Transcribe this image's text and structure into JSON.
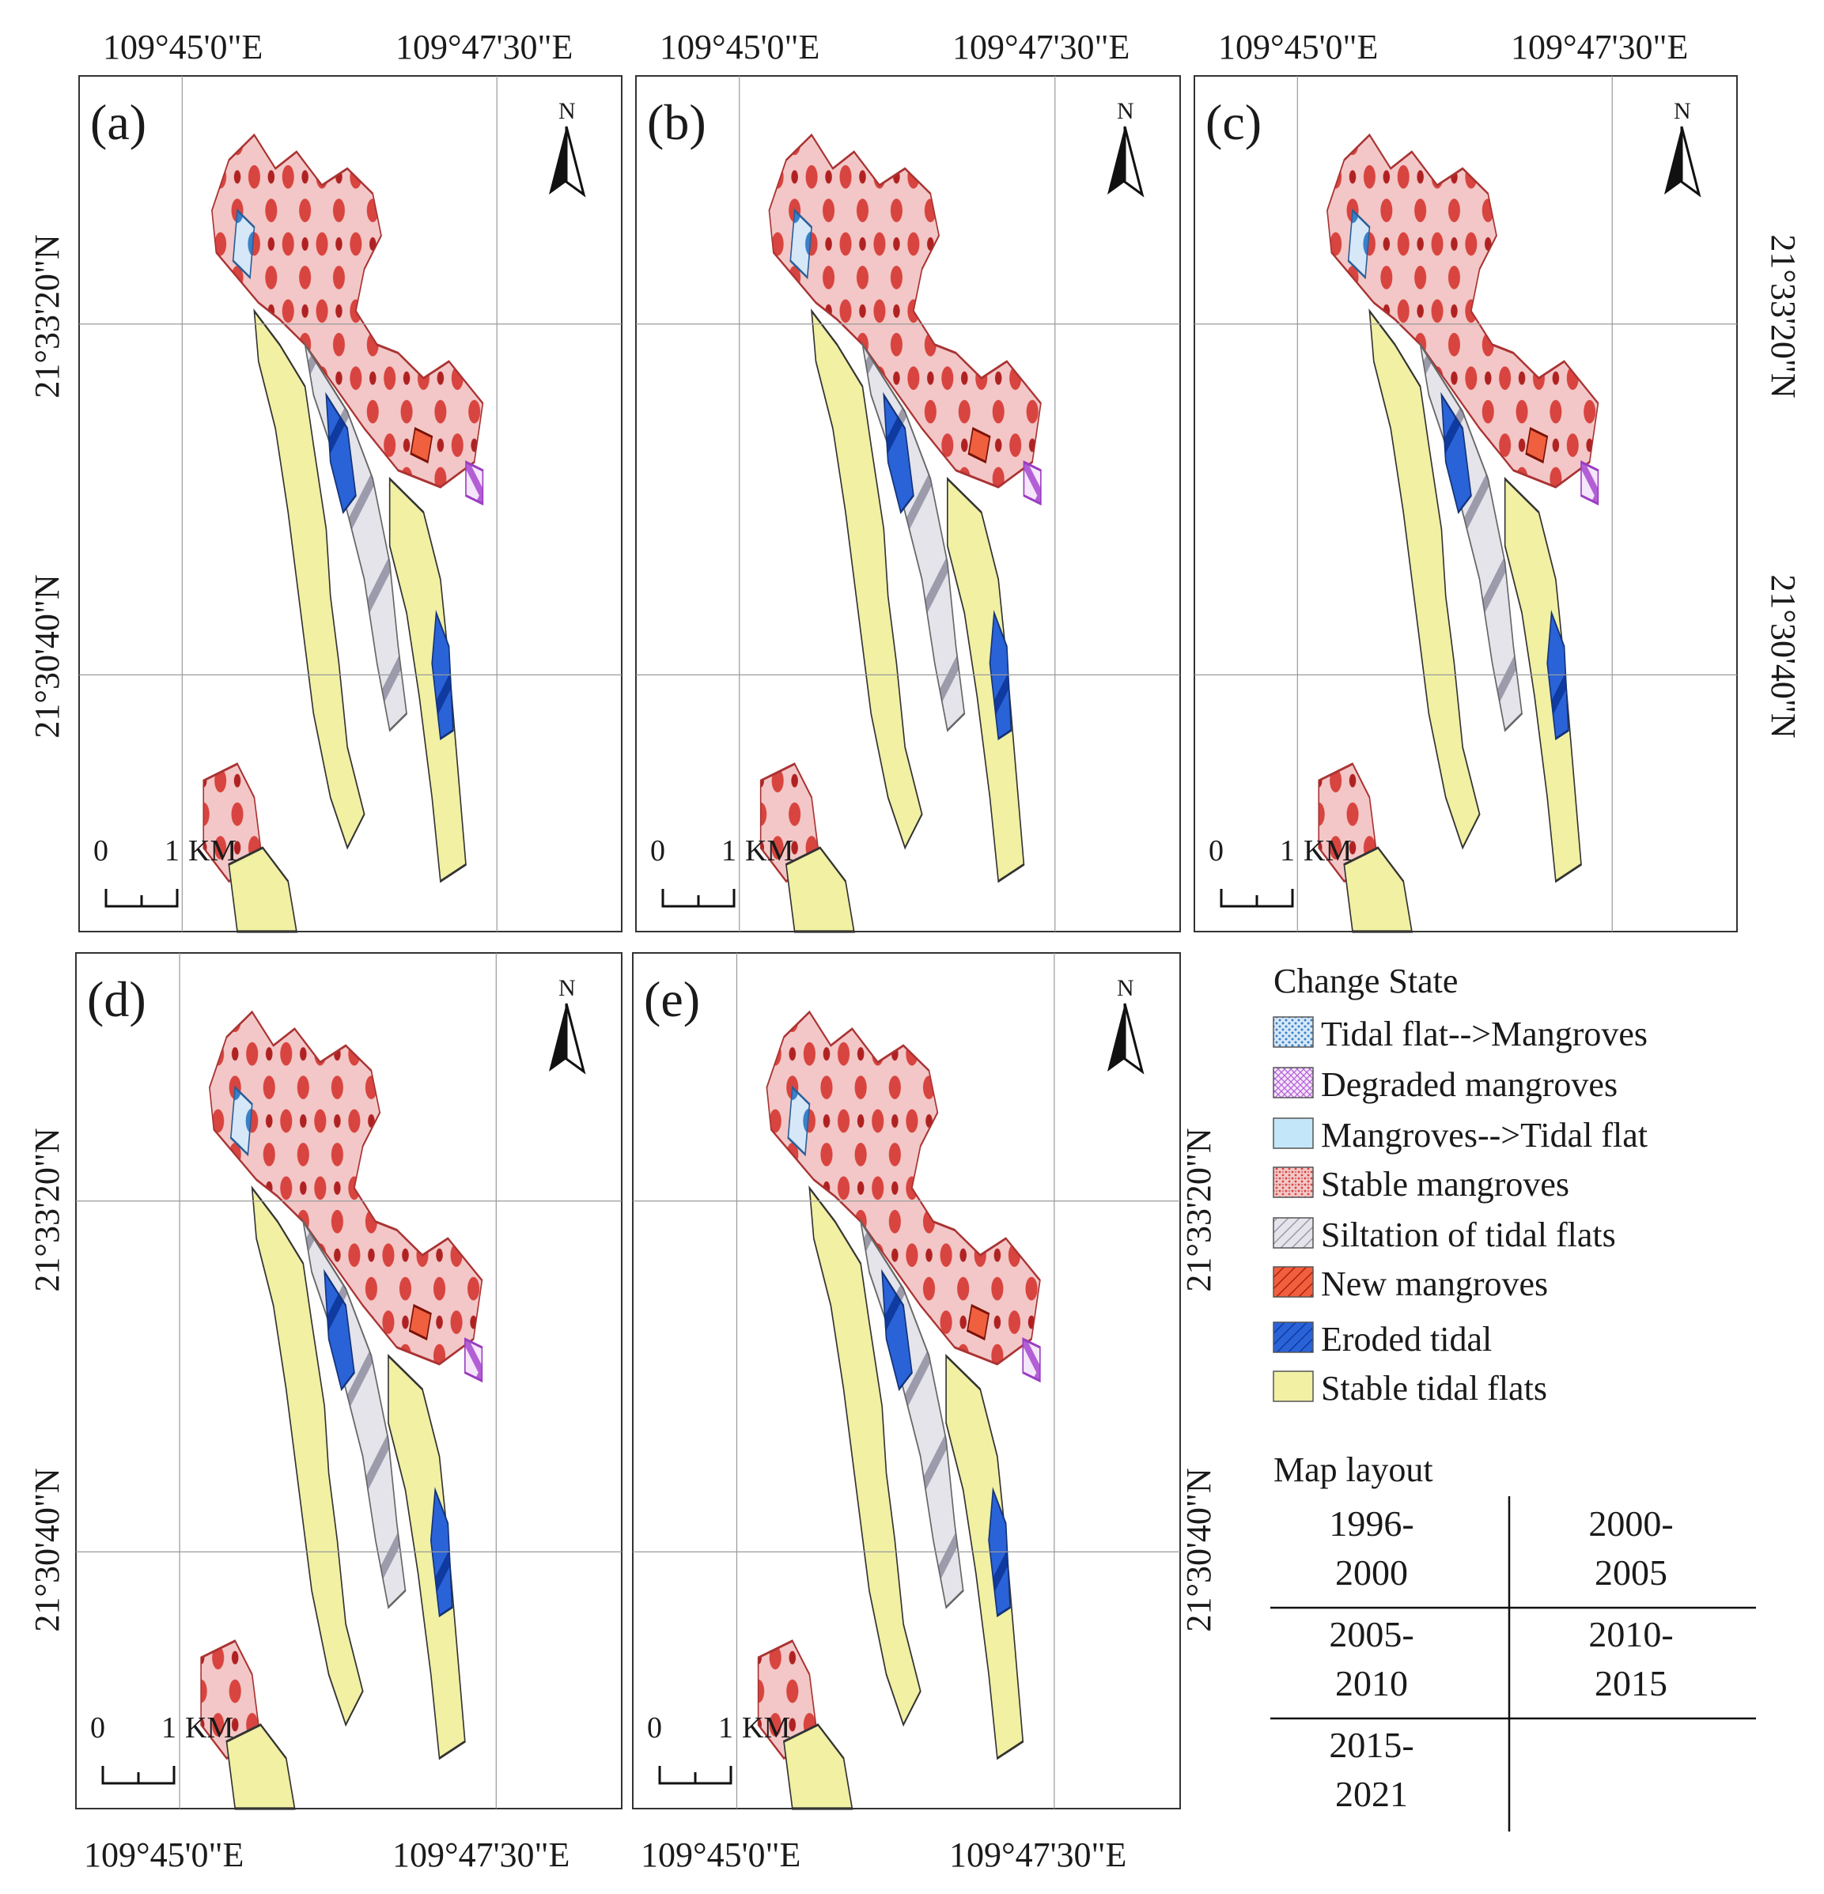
{
  "panels": [
    {
      "id": "a",
      "label": "(a)"
    },
    {
      "id": "b",
      "label": "(b)"
    },
    {
      "id": "c",
      "label": "(c)"
    },
    {
      "id": "d",
      "label": "(d)"
    },
    {
      "id": "e",
      "label": "(e)"
    }
  ],
  "coords": {
    "lon_west": "109°45'0\"E",
    "lon_east": "109°47'30\"E",
    "lat_north": "21°33'20\"N",
    "lat_south": "21°30'40\"N"
  },
  "north_arrow": {
    "label": "N",
    "icon": "north-arrow-icon"
  },
  "scale_bar": {
    "zero": "0",
    "one": "1",
    "unit": "KM"
  },
  "legend": {
    "title": "Change State",
    "items": [
      {
        "label": "Tidal flat-->Mangroves",
        "color": "#5b9bd5",
        "pattern": "dots-blue"
      },
      {
        "label": "Degraded mangroves",
        "color": "#c77ee0",
        "pattern": "cross-purple"
      },
      {
        "label": "Mangroves-->Tidal flat",
        "color": "#bfe6f7",
        "pattern": "solid-lightblue"
      },
      {
        "label": "Stable mangroves",
        "color": "#e06a6a",
        "pattern": "dots-red"
      },
      {
        "label": "Siltation of tidal flats",
        "color": "#b7b7c4",
        "pattern": "hatch-grey"
      },
      {
        "label": "New mangroves",
        "color": "#e8391f",
        "pattern": "hatch-red"
      },
      {
        "label": "Eroded tidal",
        "color": "#1e5bd0",
        "pattern": "hatch-blue"
      },
      {
        "label": "Stable tidal flats",
        "color": "#f1f0a0",
        "pattern": "solid-yellow"
      }
    ]
  },
  "map_layout": {
    "title": "Map layout",
    "cells": [
      [
        "1996-",
        "2000"
      ],
      [
        "2000-",
        "2005"
      ],
      [
        "2005-",
        "2010"
      ],
      [
        "2010-",
        "2015"
      ],
      [
        "2015-",
        "2021"
      ]
    ]
  }
}
